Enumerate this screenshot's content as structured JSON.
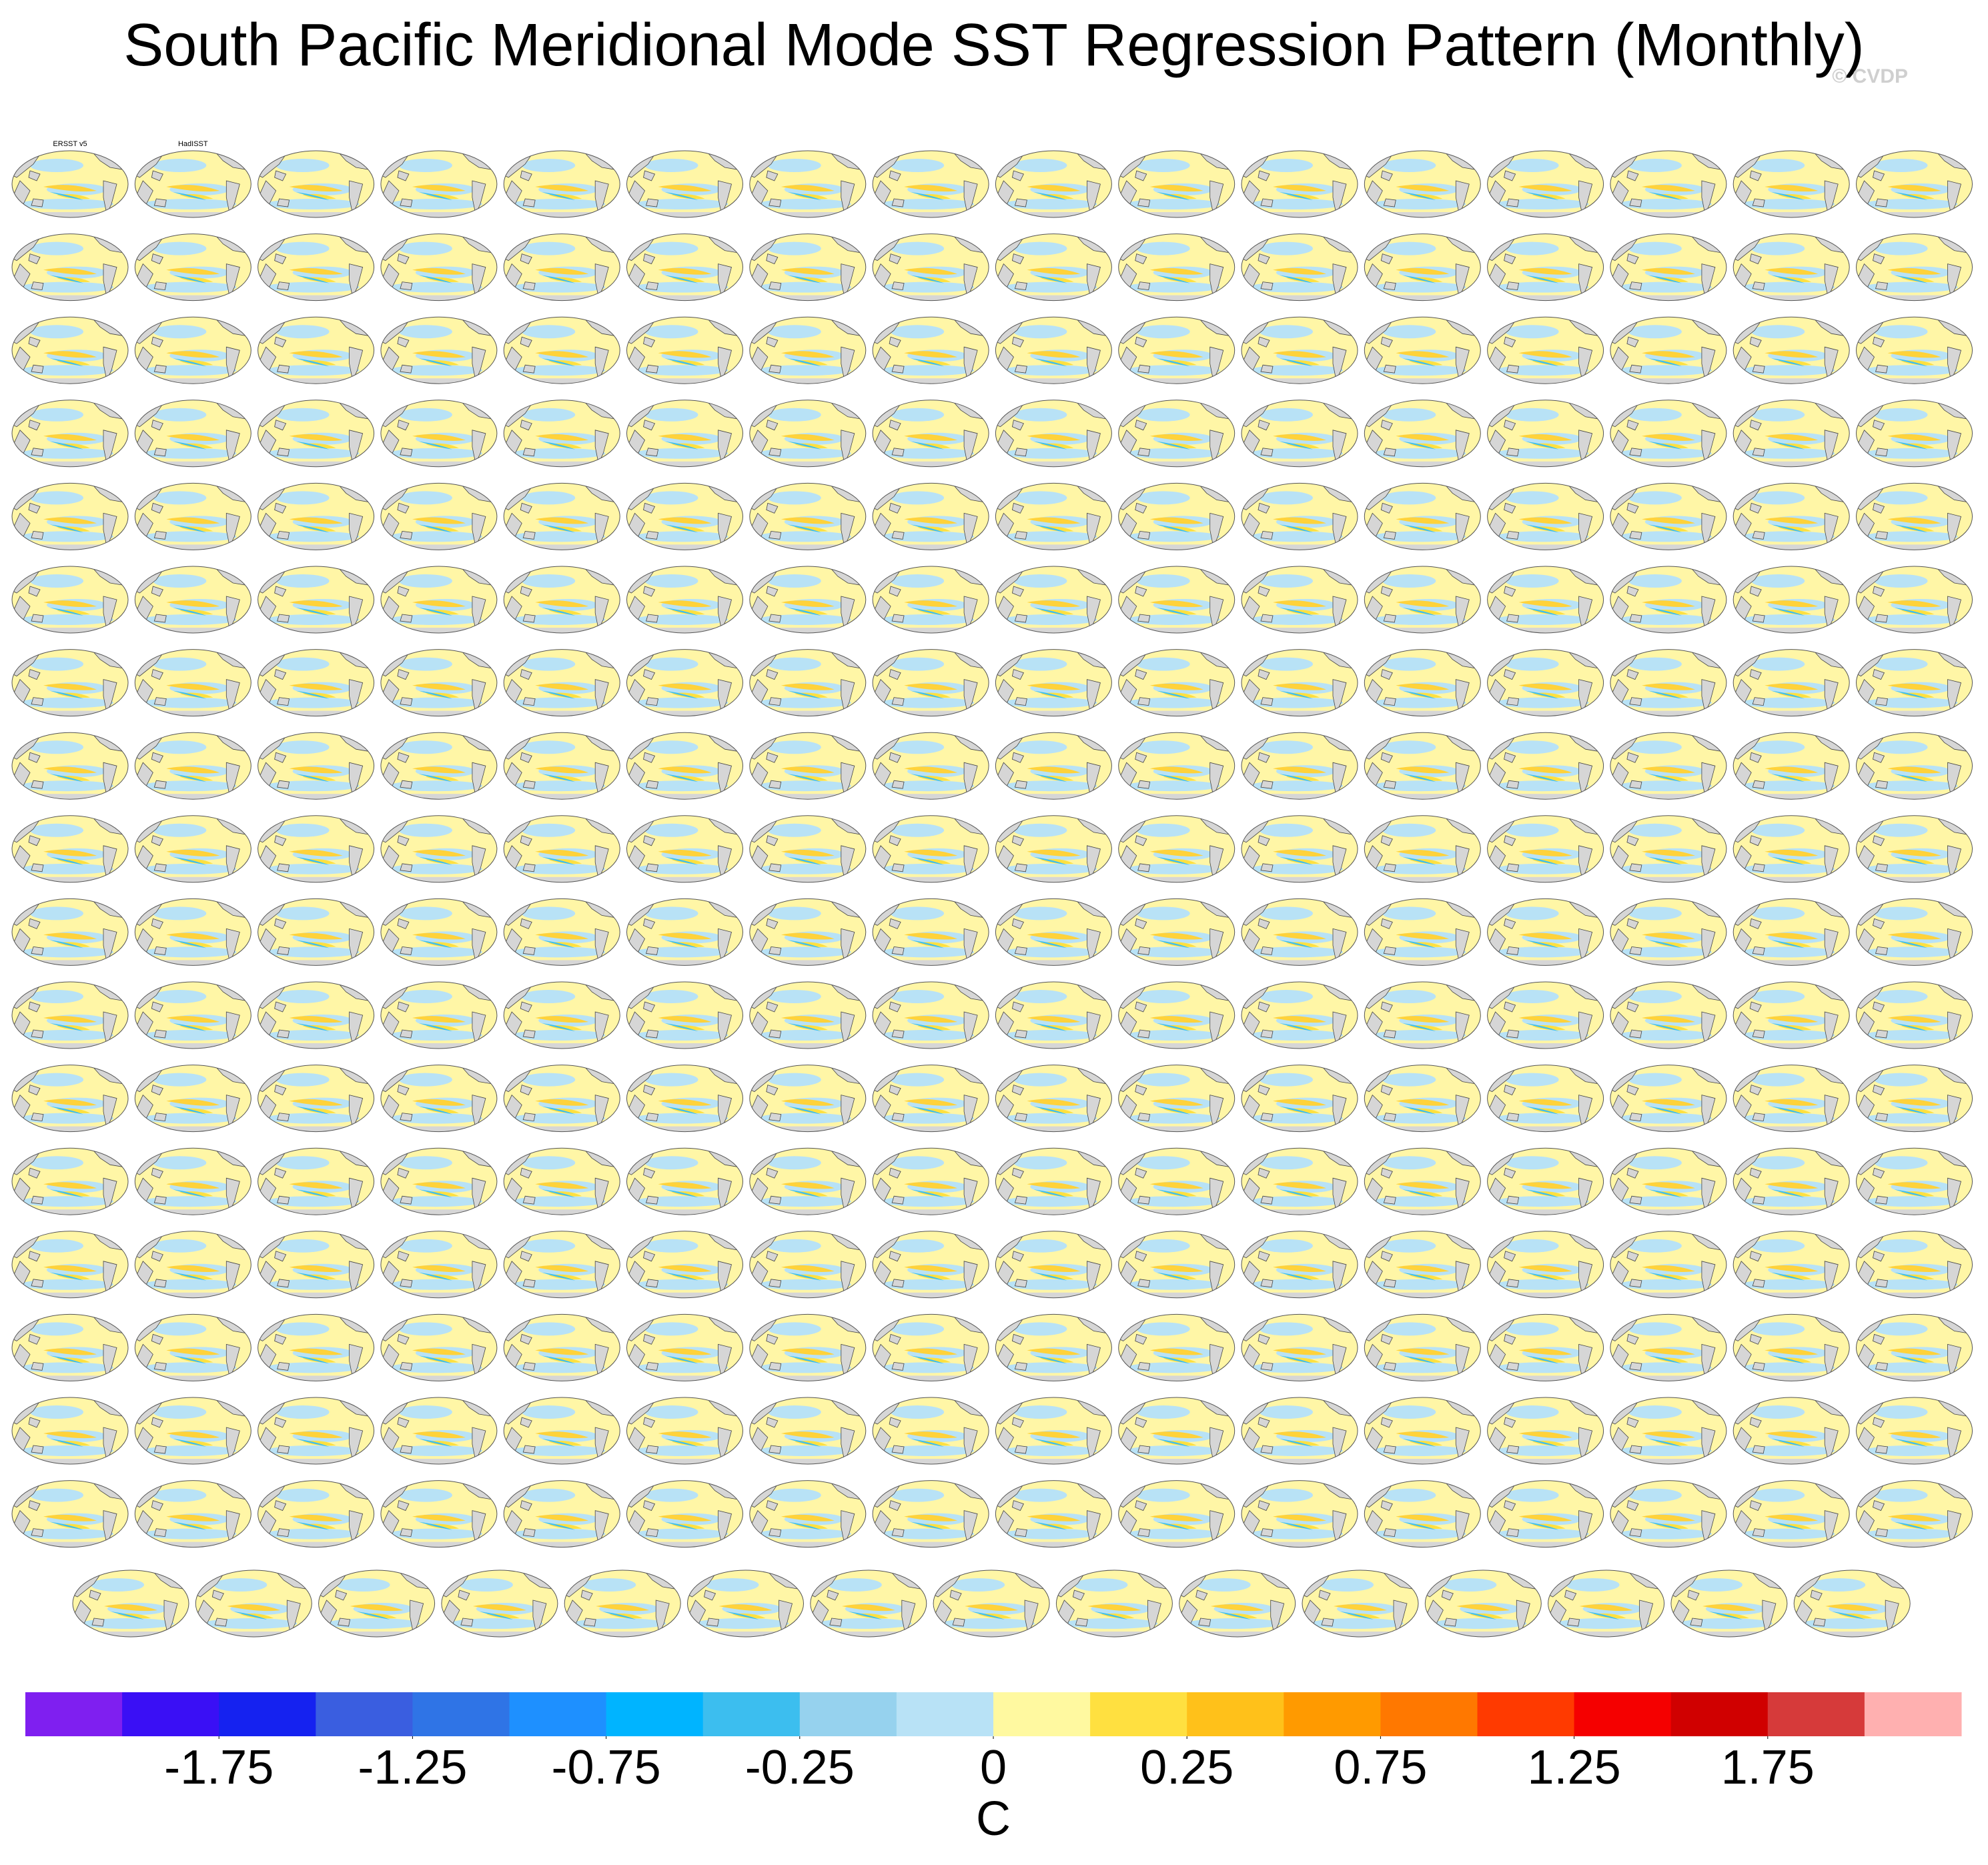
{
  "chart_data": {
    "type": "map-panels",
    "title": "South Pacific Meridional Mode SST Regression Pattern (Monthly)",
    "watermark": "© CVDP",
    "panel_titles": [
      "ERSST v5",
      "HadISST"
    ],
    "colorbar": {
      "colors": [
        "#7f1ff0",
        "#3a0ff5",
        "#1522f0",
        "#3a5ee0",
        "#2f74e6",
        "#1e90ff",
        "#00b4ff",
        "#3cbeef",
        "#96d2ee",
        "#b8e2f6",
        "#fff9a0",
        "#ffe040",
        "#ffc11a",
        "#ff9a00",
        "#ff7800",
        "#ff3a00",
        "#f50000",
        "#d00000",
        "#d63a3a",
        "#ffb0b0"
      ],
      "levels": [
        -2,
        -1.75,
        -1.5,
        -1.25,
        -1,
        -0.75,
        -0.5,
        -0.25,
        -0.125,
        0,
        0.125,
        0.25,
        0.5,
        0.75,
        1,
        1.25,
        1.5,
        1.75,
        2
      ],
      "ticks": [
        -1.75,
        -1.25,
        -0.75,
        -0.25,
        0,
        0.25,
        0.75,
        1.25,
        1.75
      ],
      "unit": "C"
    }
  }
}
